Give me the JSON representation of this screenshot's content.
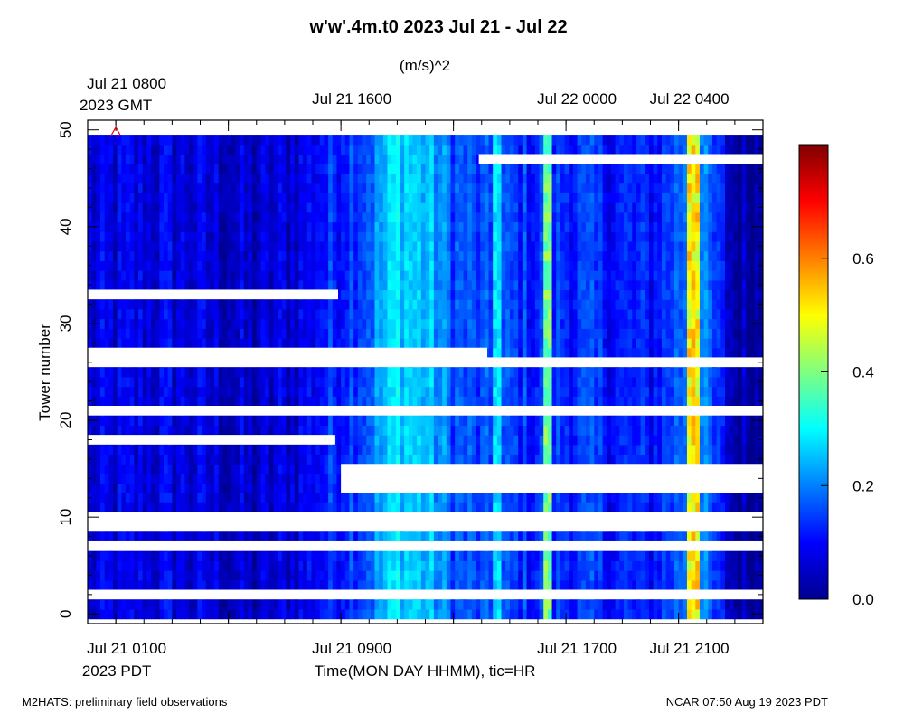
{
  "chart_data": {
    "type": "heatmap",
    "title": "w'w'.4m.t0 2023 Jul 21 - Jul 22",
    "units": "(m/s)^2",
    "ylabel": "Tower number",
    "xlabel": "Time(MON DAY HHMM), tic=HR",
    "ylim": [
      -1,
      51
    ],
    "yticks": [
      0,
      10,
      20,
      30,
      40,
      50
    ],
    "x_range_hours": [
      -1,
      23
    ],
    "top_ticks": [
      {
        "line1": "Jul 21 0800",
        "line2": "2023 GMT",
        "hour": 0
      },
      {
        "line1": "Jul 21 1600",
        "line2": "",
        "hour": 8
      },
      {
        "line1": "Jul 22 0000",
        "line2": "",
        "hour": 16
      },
      {
        "line1": "Jul 22 0400",
        "line2": "",
        "hour": 20
      }
    ],
    "bottom_ticks": [
      {
        "line1": "Jul 21 0100",
        "line2": "2023 PDT",
        "hour": 0
      },
      {
        "line1": "Jul 21 0900",
        "line2": "",
        "hour": 8
      },
      {
        "line1": "Jul 21 1700",
        "line2": "",
        "hour": 16
      },
      {
        "line1": "Jul 21 2100",
        "line2": "",
        "hour": 20
      }
    ],
    "hour_ticks": [
      4,
      12
    ],
    "colorbar": {
      "min": 0.0,
      "max": 0.8,
      "ticks": [
        "0.0",
        "0.2",
        "0.4",
        "0.6"
      ],
      "tick_values": [
        0.0,
        0.2,
        0.4,
        0.6
      ]
    },
    "marker_hour": 0,
    "marker_tower": 50,
    "marker_color": "#ff0000",
    "towers_max": 49,
    "time_profile": [
      {
        "h": -1.0,
        "v": 0.07
      },
      {
        "h": 2.0,
        "v": 0.08
      },
      {
        "h": 4.0,
        "v": 0.06
      },
      {
        "h": 5.0,
        "v": 0.05
      },
      {
        "h": 6.5,
        "v": 0.08
      },
      {
        "h": 8.0,
        "v": 0.14
      },
      {
        "h": 9.0,
        "v": 0.18
      },
      {
        "h": 10.0,
        "v": 0.28
      },
      {
        "h": 11.0,
        "v": 0.25
      },
      {
        "h": 12.0,
        "v": 0.17
      },
      {
        "h": 13.0,
        "v": 0.14
      },
      {
        "h": 14.0,
        "v": 0.14
      },
      {
        "h": 15.0,
        "v": 0.13
      },
      {
        "h": 16.0,
        "v": 0.14
      },
      {
        "h": 17.5,
        "v": 0.12
      },
      {
        "h": 19.0,
        "v": 0.11
      },
      {
        "h": 20.0,
        "v": 0.17
      },
      {
        "h": 20.5,
        "v": 0.23
      },
      {
        "h": 21.2,
        "v": 0.15
      },
      {
        "h": 21.6,
        "v": 0.09
      },
      {
        "h": 22.0,
        "v": 0.03
      },
      {
        "h": 23.0,
        "v": 0.03
      }
    ],
    "hot_columns": [
      {
        "h": 20.45,
        "v": 0.55,
        "width_hours": 0.3
      },
      {
        "h": 15.3,
        "v": 0.42,
        "width_hours": 0.1
      },
      {
        "h": 13.5,
        "v": 0.3,
        "width_hours": 0.1
      }
    ],
    "missing_data": [
      {
        "from_tower": 2,
        "to_tower": 2,
        "from_hour": -1,
        "to_hour": 23
      },
      {
        "from_tower": 7,
        "to_tower": 7,
        "from_hour": -1,
        "to_hour": 23
      },
      {
        "from_tower": 9,
        "to_tower": 10,
        "from_hour": -1,
        "to_hour": 23
      },
      {
        "from_tower": 13,
        "to_tower": 15,
        "from_hour": 8,
        "to_hour": 23
      },
      {
        "from_tower": 18,
        "to_tower": 18,
        "from_hour": -1,
        "to_hour": 7.8
      },
      {
        "from_tower": 21,
        "to_tower": 21,
        "from_hour": -1,
        "to_hour": 23
      },
      {
        "from_tower": 26,
        "to_tower": 27,
        "from_hour": -1,
        "to_hour": 13.2
      },
      {
        "from_tower": 26,
        "to_tower": 26,
        "from_hour": 13.2,
        "to_hour": 23
      },
      {
        "from_tower": 33,
        "to_tower": 33,
        "from_hour": -1,
        "to_hour": 7.9
      },
      {
        "from_tower": 47,
        "to_tower": 47,
        "from_hour": 12.9,
        "to_hour": 23
      }
    ]
  },
  "footer": {
    "left": "M2HATS: preliminary field observations",
    "right": "NCAR 07:50 Aug 19 2023 PDT"
  }
}
